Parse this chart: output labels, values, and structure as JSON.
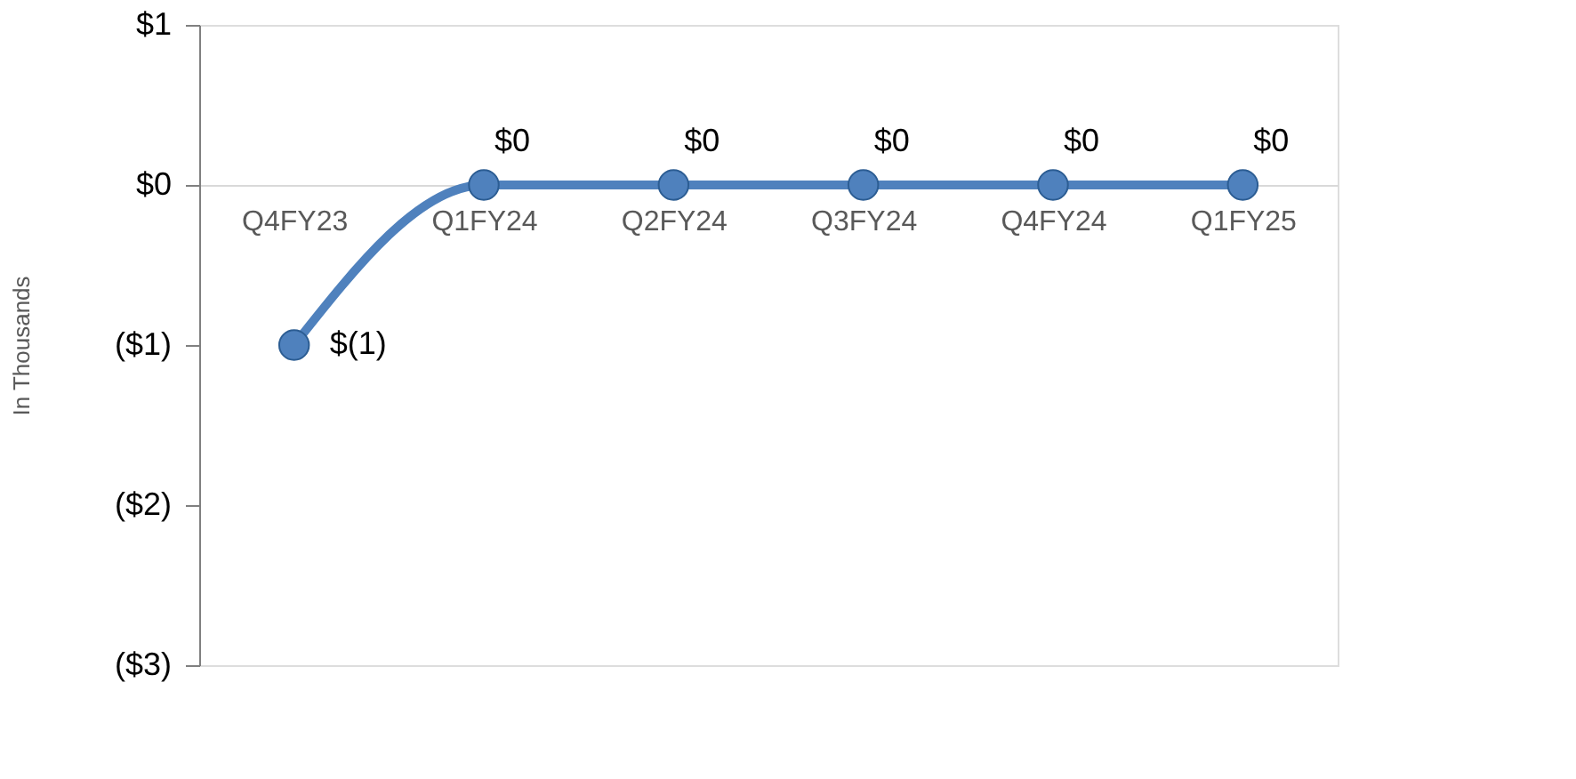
{
  "chart_data": {
    "type": "line",
    "ylabel": "In Thousands",
    "categories": [
      "Q4FY23",
      "Q1FY24",
      "Q2FY24",
      "Q3FY24",
      "Q4FY24",
      "Q1FY25"
    ],
    "series": [
      {
        "color": "#4f81bd",
        "values": [
          -1,
          0,
          0,
          0,
          0,
          0
        ],
        "value_labels": [
          "$(1)",
          "$0",
          "$0",
          "$0",
          "$0",
          "$0"
        ]
      }
    ],
    "ylim": [
      -3,
      1
    ],
    "yticks": [
      {
        "value": 1,
        "label": "$1"
      },
      {
        "value": 0,
        "label": "$0"
      },
      {
        "value": -1,
        "label": "($1)"
      },
      {
        "value": -2,
        "label": "($2)"
      },
      {
        "value": -3,
        "label": "($3)"
      }
    ],
    "marker": "circle",
    "line_style": "solid",
    "grid": false
  }
}
